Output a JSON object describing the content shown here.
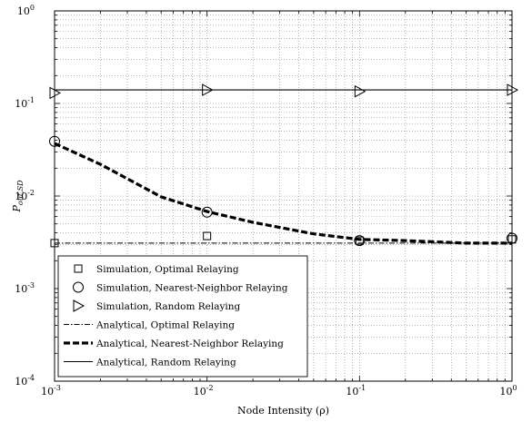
{
  "chart_data": {
    "type": "line",
    "xlabel": "Node Intensity (ρ)",
    "ylabel_main": "P",
    "ylabel_sub": "out,SD",
    "x_scale": "log",
    "y_scale": "log",
    "xlim": [
      0.001,
      1
    ],
    "ylim": [
      0.0001,
      1
    ],
    "grid": true,
    "legend_position": "bottom-left",
    "x_ticks": [
      {
        "base": "10",
        "exp": "-3"
      },
      {
        "base": "10",
        "exp": "-2"
      },
      {
        "base": "10",
        "exp": "-1"
      },
      {
        "base": "10",
        "exp": "0"
      }
    ],
    "y_ticks": [
      {
        "base": "10",
        "exp": "-4"
      },
      {
        "base": "10",
        "exp": "-3"
      },
      {
        "base": "10",
        "exp": "-2"
      },
      {
        "base": "10",
        "exp": "-1"
      },
      {
        "base": "10",
        "exp": "0"
      }
    ],
    "series": [
      {
        "name": "Simulation, Optimal Relaying",
        "kind": "marker",
        "marker": "square",
        "x": [
          0.001,
          0.01,
          0.1,
          1
        ],
        "y": [
          0.0031,
          0.0037,
          0.0033,
          0.0034
        ]
      },
      {
        "name": "Simulation, Nearest-Neighbor Relaying",
        "kind": "marker",
        "marker": "circle",
        "x": [
          0.001,
          0.01,
          0.1,
          1
        ],
        "y": [
          0.039,
          0.0067,
          0.0033,
          0.0035
        ]
      },
      {
        "name": "Simulation, Random Relaying",
        "kind": "marker",
        "marker": "triangle-right",
        "x": [
          0.001,
          0.01,
          0.1,
          1
        ],
        "y": [
          0.13,
          0.14,
          0.135,
          0.14
        ]
      },
      {
        "name": "Analytical, Optimal Relaying",
        "kind": "line",
        "style": "dashdot",
        "x": [
          0.001,
          1
        ],
        "y": [
          0.0031,
          0.0031
        ]
      },
      {
        "name": "Analytical, Nearest-Neighbor Relaying",
        "kind": "line",
        "style": "dashed-bold",
        "x": [
          0.001,
          0.002,
          0.005,
          0.01,
          0.02,
          0.05,
          0.1,
          0.2,
          0.5,
          1
        ],
        "y": [
          0.037,
          0.022,
          0.0098,
          0.0068,
          0.0052,
          0.0039,
          0.0034,
          0.0033,
          0.0031,
          0.0031
        ]
      },
      {
        "name": "Analytical, Random Relaying",
        "kind": "line",
        "style": "solid",
        "x": [
          0.001,
          1
        ],
        "y": [
          0.14,
          0.14
        ]
      }
    ]
  }
}
